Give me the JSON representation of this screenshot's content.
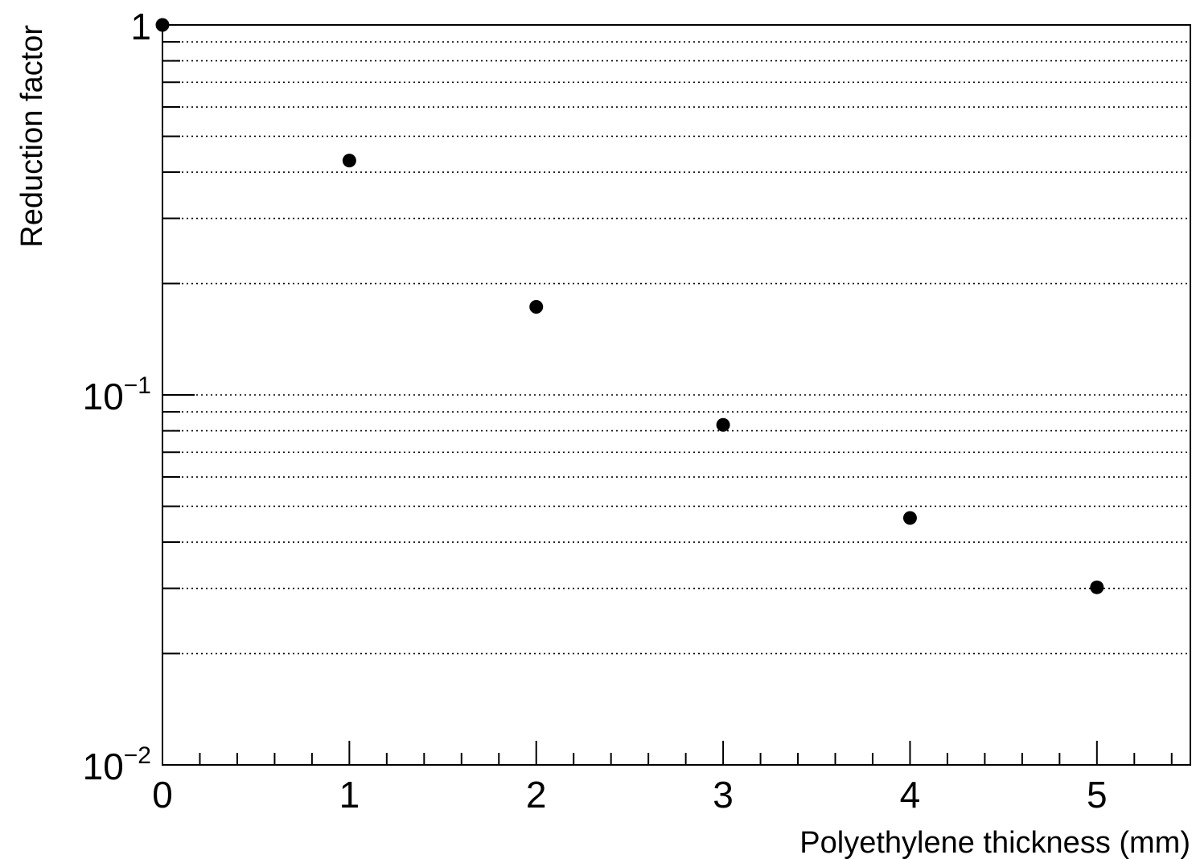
{
  "chart_data": {
    "type": "scatter",
    "title": "",
    "xlabel": "Polyethylene thickness (mm)",
    "ylabel": "Reduction factor",
    "xlim": [
      0,
      5.5
    ],
    "ylim": [
      0.01,
      1
    ],
    "yscale": "log",
    "grid": {
      "x": false,
      "y": true,
      "y_minor": true
    },
    "legend": "none",
    "x_ticks": [
      {
        "value": 0,
        "label": "0"
      },
      {
        "value": 1,
        "label": "1"
      },
      {
        "value": 2,
        "label": "2"
      },
      {
        "value": 3,
        "label": "3"
      },
      {
        "value": 4,
        "label": "4"
      },
      {
        "value": 5,
        "label": "5"
      }
    ],
    "y_ticks": [
      {
        "value": 1,
        "base": "1",
        "exponent": ""
      },
      {
        "value": 0.1,
        "base": "10",
        "exponent": "−1"
      },
      {
        "value": 0.01,
        "base": "10",
        "exponent": "−2"
      }
    ],
    "series": [
      {
        "marker_color": "#000000",
        "points": [
          {
            "x": 0,
            "y": 1.0
          },
          {
            "x": 1,
            "y": 0.43
          },
          {
            "x": 2,
            "y": 0.173
          },
          {
            "x": 3,
            "y": 0.083
          },
          {
            "x": 4,
            "y": 0.0465
          },
          {
            "x": 5,
            "y": 0.0302
          }
        ]
      }
    ]
  }
}
